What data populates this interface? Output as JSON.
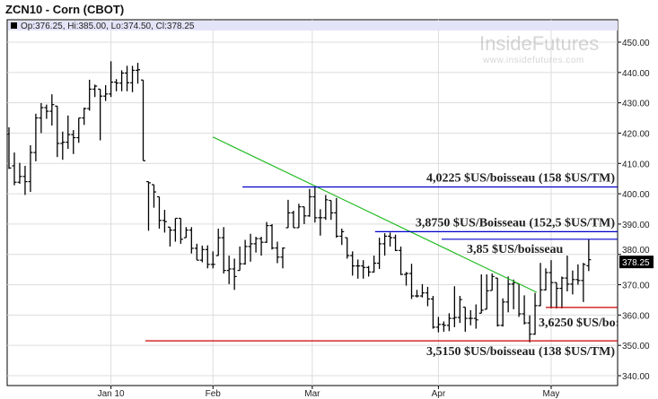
{
  "title": "ZCN10 - Corn (CBOT)",
  "legend": {
    "text": "Op:376.25, Hi:385.00, Lo:374.50, Cl:378.25",
    "marker_color": "#000000"
  },
  "watermark": {
    "brand": "InsideFutures",
    "url": "www.insidefutures.com"
  },
  "chart_data": {
    "type": "ohlc",
    "title": "ZCN10 - Corn (CBOT)",
    "ylim": [
      340,
      455
    ],
    "yticks": [
      "340.00",
      "350.00",
      "360.00",
      "370.00",
      "380.00",
      "390.00",
      "400.00",
      "410.00",
      "420.00",
      "430.00",
      "440.00",
      "450.00"
    ],
    "ytick_values": [
      340,
      350,
      360,
      370,
      380,
      390,
      400,
      410,
      420,
      430,
      440,
      450
    ],
    "last_price": {
      "value": 378.25,
      "label": "378.25"
    },
    "xticks": [
      {
        "label": "Jan 10",
        "bar": 19
      },
      {
        "label": "Feb",
        "bar": 38
      },
      {
        "label": "Mar",
        "bar": 56.5
      },
      {
        "label": "Apr",
        "bar": 80
      },
      {
        "label": "May",
        "bar": 101
      }
    ],
    "grid": true,
    "ohlc": [
      [
        419.7,
        421.9,
        408.2,
        408.5
      ],
      [
        409.2,
        413.6,
        402.8,
        403.8
      ],
      [
        403.8,
        410.2,
        403.3,
        405.7
      ],
      [
        405.7,
        409.2,
        399.6,
        404
      ],
      [
        404,
        416,
        400.6,
        413.6
      ],
      [
        413.6,
        426.4,
        410.7,
        425
      ],
      [
        425,
        429.9,
        420,
        428.4
      ],
      [
        428.4,
        429.4,
        424.7,
        427.2
      ],
      [
        427.2,
        432.8,
        422.5,
        429.4
      ],
      [
        428.9,
        428.9,
        412.1,
        416.6
      ],
      [
        416.6,
        420.5,
        411.2,
        417
      ],
      [
        417,
        425.8,
        414.8,
        419.5
      ],
      [
        419.5,
        421,
        413.1,
        418.5
      ],
      [
        418.5,
        425,
        416.8,
        425
      ],
      [
        425,
        428.4,
        422.7,
        428.1
      ],
      [
        428.1,
        437.6,
        427.4,
        434.5
      ],
      [
        434.5,
        436,
        431.9,
        435.5
      ],
      [
        434.5,
        434.5,
        417.6,
        432.2
      ],
      [
        432.2,
        435.8,
        430.6,
        432.9
      ],
      [
        432.9,
        443.7,
        431.9,
        436.8
      ],
      [
        436.8,
        437.8,
        433.8,
        436.5
      ],
      [
        436.5,
        440.7,
        433.8,
        439.8
      ],
      [
        439.8,
        442.2,
        433.8,
        436.6
      ],
      [
        436.6,
        442.2,
        433.5,
        440.7
      ],
      [
        440.7,
        443.2,
        436.3,
        440.9
      ],
      [
        437.5,
        437.5,
        410.9,
        410.9
      ],
      [
        404,
        404,
        387.8,
        403.6
      ],
      [
        403,
        403,
        395.4,
        400.6
      ],
      [
        399,
        399,
        388.5,
        391.2
      ],
      [
        391.2,
        394.7,
        387.2,
        390.8
      ],
      [
        389,
        389,
        382.6,
        388
      ],
      [
        388,
        391.9,
        384.2,
        391.9
      ],
      [
        391.9,
        391.9,
        383.5,
        385
      ],
      [
        385.5,
        389,
        385.5,
        388
      ],
      [
        388,
        389,
        380.3,
        382
      ],
      [
        382,
        383.5,
        378.1,
        378.1
      ],
      [
        378.1,
        382.9,
        377.4,
        381.6
      ],
      [
        381.6,
        383,
        375.4,
        376.7
      ],
      [
        376.7,
        381,
        375.4,
        376.7
      ],
      [
        379.6,
        388.5,
        379.6,
        385.5
      ],
      [
        385.5,
        389,
        373.7,
        374.7
      ],
      [
        374.7,
        379.6,
        370.2,
        375.2
      ],
      [
        375.2,
        378.6,
        368.3,
        372.7
      ],
      [
        374.7,
        382.6,
        374.7,
        376.9
      ],
      [
        376.9,
        384.8,
        376.6,
        382.6
      ],
      [
        382.6,
        386.8,
        377.6,
        383.5
      ],
      [
        383.5,
        385.8,
        380.6,
        385.2
      ],
      [
        385.2,
        385.8,
        379.6,
        384
      ],
      [
        384,
        390.7,
        383.8,
        389.5
      ],
      [
        389.5,
        390,
        381.6,
        382.1
      ],
      [
        382.1,
        384.2,
        377.1,
        379.1
      ],
      [
        379.1,
        382.3,
        375.4,
        382.1
      ],
      [
        388.8,
        398,
        388.8,
        393.7
      ],
      [
        393.7,
        394.4,
        388.8,
        388.8
      ],
      [
        388.8,
        396.7,
        388.8,
        395.7
      ],
      [
        395.7,
        395.7,
        390,
        392.7
      ],
      [
        392.7,
        401.6,
        392.4,
        399
      ],
      [
        399,
        402.3,
        390.5,
        392.1
      ],
      [
        392.1,
        394.9,
        386.2,
        392.1
      ],
      [
        392.1,
        399.6,
        391.4,
        398
      ],
      [
        397.8,
        397.8,
        391.4,
        393.7
      ],
      [
        393.7,
        398.6,
        385.5,
        386
      ],
      [
        386,
        388.5,
        383.1,
        387.5
      ],
      [
        385.5,
        385.5,
        378.6,
        379.6
      ],
      [
        379.6,
        381,
        373,
        376.2
      ],
      [
        376.2,
        378.3,
        372,
        376.2
      ],
      [
        376.2,
        378.1,
        372,
        375.7
      ],
      [
        375.7,
        376.2,
        372.7,
        374.2
      ],
      [
        374.2,
        379.6,
        374,
        377.1
      ],
      [
        377.1,
        385.5,
        375.2,
        383.5
      ],
      [
        383.5,
        387,
        379.6,
        386
      ],
      [
        386,
        387.2,
        382.6,
        385.5
      ],
      [
        385.5,
        386.5,
        381.1,
        381.3
      ],
      [
        381.3,
        382.6,
        373.2,
        373.4
      ],
      [
        373.4,
        374.2,
        369.7,
        373.7
      ],
      [
        373.7,
        376.9,
        365.3,
        366.3
      ],
      [
        366.3,
        368.3,
        365.8,
        366.3
      ],
      [
        366.3,
        370.2,
        365.8,
        367.3
      ],
      [
        367.3,
        369.3,
        362.9,
        365.3
      ],
      [
        365.3,
        366.3,
        355.5,
        356
      ],
      [
        356,
        359.4,
        354.3,
        356.9
      ],
      [
        356.9,
        357.9,
        354.5,
        356.6
      ],
      [
        356.6,
        360.6,
        354.7,
        358.9
      ],
      [
        358.9,
        369.5,
        356,
        359.2
      ],
      [
        359.2,
        366.3,
        357.4,
        365.1
      ],
      [
        362.6,
        362.6,
        354.5,
        358.9
      ],
      [
        358.9,
        361.6,
        356.6,
        358.9
      ],
      [
        358.9,
        363.5,
        355.5,
        358.4
      ],
      [
        360.6,
        373.4,
        360.6,
        361.6
      ],
      [
        361.9,
        373.4,
        361.9,
        368
      ],
      [
        368.1,
        373.7,
        368.1,
        372.7
      ],
      [
        372.2,
        372.2,
        356.2,
        356.6
      ],
      [
        356.6,
        365.5,
        356.2,
        364.3
      ],
      [
        364.3,
        372.7,
        360.9,
        370.2
      ],
      [
        370.2,
        371.7,
        361.9,
        370.7
      ],
      [
        370.4,
        370.4,
        359.4,
        360.4
      ],
      [
        360.4,
        366.5,
        356.9,
        357.4
      ],
      [
        357.4,
        359.9,
        351,
        353.7
      ],
      [
        353.7,
        367.3,
        353.5,
        363.1
      ],
      [
        363.1,
        377.2,
        362.9,
        368.3
      ],
      [
        368.3,
        375.4,
        368.1,
        374
      ],
      [
        374,
        378.1,
        362.2,
        370.7
      ],
      [
        370.7,
        370.7,
        362.2,
        368.8
      ],
      [
        368.8,
        372.7,
        362.2,
        372.2
      ],
      [
        372.2,
        379.6,
        367.8,
        370.2
      ],
      [
        370.2,
        374.7,
        366.8,
        371.7
      ],
      [
        371.7,
        376.7,
        370,
        371.4
      ],
      [
        371.4,
        377.2,
        364.3,
        376.7
      ],
      [
        376.25,
        385,
        374.5,
        378.25
      ]
    ],
    "trendline": {
      "from": {
        "bar": 38,
        "price": 418.7
      },
      "to": {
        "bar": 98.3,
        "price": 367.5
      },
      "color": "#22bb22"
    },
    "levels": [
      {
        "price": 402.25,
        "from_bar": 43.5,
        "color": "#0000cc",
        "label": "4,0225 $US/boisseau (158 $US/TM)",
        "label_pos": "above-right"
      },
      {
        "price": 387.5,
        "from_bar": 68.2,
        "color": "#0000cc",
        "label": "3,8750 $US/Boisseau (152,5 $US/TM)",
        "label_pos": "above-right"
      },
      {
        "price": 385,
        "from_bar": 80.6,
        "color": "#0000cc",
        "label": "3,85 $US/boisseau",
        "label_pos": "below-left"
      },
      {
        "price": 362.5,
        "from_bar": 100,
        "color": "#cc0000",
        "label": "3,6250 $US/bo:",
        "label_pos": "below-left"
      },
      {
        "price": 351.5,
        "from_bar": 25.4,
        "color": "#cc0000",
        "label": "3,5150 $US/boisseau (138 $US/TM)",
        "label_pos": "below-right"
      }
    ]
  }
}
